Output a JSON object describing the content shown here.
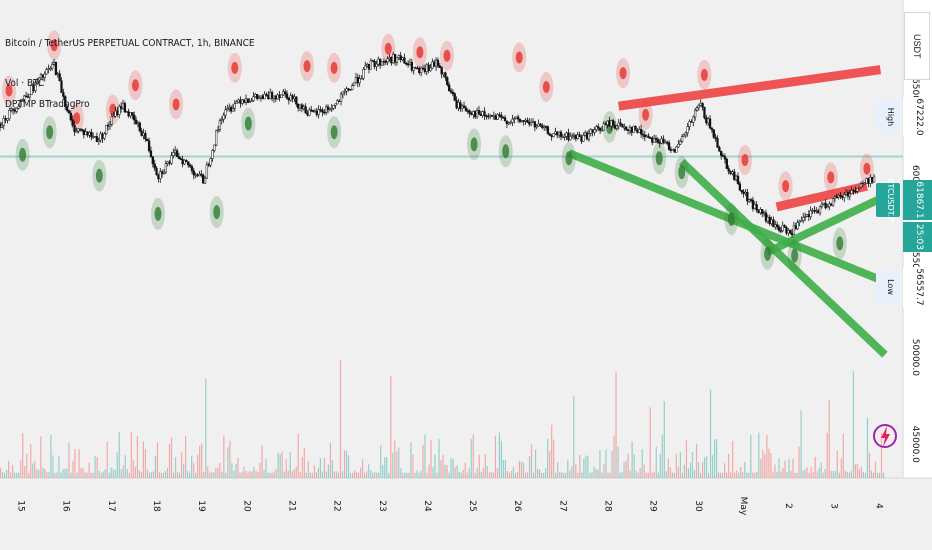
{
  "header": {
    "title": "Bitcoin / TetherUS PERPETUAL CONTRACT, 1h, BINANCE",
    "volume_label": "Vol · BTC",
    "indicator_label": "DPTMP BTradngPro"
  },
  "currency_button": "USDT",
  "badges": {
    "high_label": "High",
    "high_value": "67222.0",
    "symbol_label": "BTCUSDT.P",
    "last_value": "61867.1",
    "countdown": "25:03",
    "low_label": "Low",
    "low_value": "56557.7"
  },
  "colors": {
    "up": "#26a69a",
    "down": "#ef5350",
    "pivot_low": "#2e7d32",
    "pivot_high": "#e53935",
    "trend_red": "#ef4444",
    "trend_green": "#3fae49"
  },
  "chart_data": {
    "type": "candlestick",
    "ylim": [
      43600,
      68800
    ],
    "price_ticks": [
      65000.0,
      60000.0,
      55000.0,
      50000.0,
      45000.0
    ],
    "price_tick_labels": [
      "65000.0",
      "60000.0",
      "55000.0",
      "50000.0",
      "45000.0"
    ],
    "time_labels": [
      "15",
      "16",
      "17",
      "18",
      "19",
      "20",
      "21",
      "22",
      "23",
      "24",
      "25",
      "26",
      "27",
      "28",
      "29",
      "30",
      "May",
      "2",
      "3",
      "4"
    ],
    "time_positions": [
      0.5,
      1.5,
      2.5,
      3.5,
      4.5,
      5.5,
      6.5,
      7.5,
      8.5,
      9.5,
      10.5,
      11.5,
      12.5,
      13.5,
      14.5,
      15.5,
      16.5,
      17.5,
      18.5,
      19.5
    ],
    "horizontal_level": 60600,
    "price_path": [
      [
        0,
        62500
      ],
      [
        0.6,
        64200
      ],
      [
        1.2,
        65900
      ],
      [
        1.6,
        62300
      ],
      [
        2.2,
        61600
      ],
      [
        2.7,
        63600
      ],
      [
        3.2,
        61800
      ],
      [
        3.5,
        59500
      ],
      [
        3.9,
        60800
      ],
      [
        4.5,
        59200
      ],
      [
        4.9,
        62900
      ],
      [
        5.3,
        63900
      ],
      [
        5.9,
        64000
      ],
      [
        6.3,
        64300
      ],
      [
        6.9,
        63000
      ],
      [
        7.4,
        63500
      ],
      [
        8.2,
        65900
      ],
      [
        8.8,
        66300
      ],
      [
        9.3,
        65400
      ],
      [
        9.7,
        66000
      ],
      [
        10.1,
        63600
      ],
      [
        10.6,
        63000
      ],
      [
        11.2,
        62700
      ],
      [
        11.7,
        62600
      ],
      [
        12.3,
        61800
      ],
      [
        12.9,
        61700
      ],
      [
        13.5,
        62500
      ],
      [
        14.0,
        62200
      ],
      [
        14.5,
        61600
      ],
      [
        15.0,
        61000
      ],
      [
        15.5,
        63600
      ],
      [
        16.1,
        60100
      ],
      [
        16.6,
        58000
      ],
      [
        17.1,
        56700
      ],
      [
        17.5,
        56200
      ],
      [
        17.9,
        57200
      ],
      [
        18.4,
        58000
      ],
      [
        19.0,
        58800
      ],
      [
        19.4,
        59500
      ]
    ],
    "pivot_highs": [
      [
        0.2,
        64400
      ],
      [
        1.2,
        67000
      ],
      [
        1.7,
        62800
      ],
      [
        2.5,
        63300
      ],
      [
        3.0,
        64700
      ],
      [
        3.9,
        63600
      ],
      [
        5.2,
        65700
      ],
      [
        6.8,
        65800
      ],
      [
        7.4,
        65700
      ],
      [
        8.6,
        66800
      ],
      [
        9.3,
        66600
      ],
      [
        9.9,
        66400
      ],
      [
        11.5,
        66300
      ],
      [
        12.1,
        64600
      ],
      [
        13.8,
        65400
      ],
      [
        14.3,
        63000
      ],
      [
        15.6,
        65300
      ],
      [
        16.5,
        60400
      ],
      [
        17.4,
        58900
      ],
      [
        18.4,
        59400
      ],
      [
        19.2,
        59900
      ]
    ],
    "pivot_lows": [
      [
        0.5,
        60700
      ],
      [
        1.1,
        62000
      ],
      [
        2.2,
        59500
      ],
      [
        3.5,
        57300
      ],
      [
        4.8,
        57400
      ],
      [
        5.5,
        62500
      ],
      [
        7.4,
        62000
      ],
      [
        10.5,
        61300
      ],
      [
        11.2,
        60900
      ],
      [
        12.6,
        60500
      ],
      [
        13.5,
        62300
      ],
      [
        14.6,
        60500
      ],
      [
        15.1,
        59700
      ],
      [
        16.2,
        57000
      ],
      [
        17.0,
        55000
      ],
      [
        17.6,
        54900
      ],
      [
        18.6,
        55600
      ]
    ],
    "trend_lines": [
      {
        "color": "red",
        "from": [
          13.7,
          63500
        ],
        "to": [
          19.5,
          65600
        ]
      },
      {
        "color": "red",
        "from": [
          17.2,
          57700
        ],
        "to": [
          19.2,
          58900
        ]
      },
      {
        "color": "green",
        "from": [
          12.6,
          60800
        ],
        "to": [
          19.6,
          53400
        ]
      },
      {
        "color": "green",
        "from": [
          15.1,
          60300
        ],
        "to": [
          19.6,
          49200
        ]
      },
      {
        "color": "green",
        "from": [
          17.0,
          55100
        ],
        "to": [
          19.6,
          58300
        ]
      }
    ],
    "volume_ylim": [
      0,
      3.4
    ],
    "volume_seed": 7
  }
}
